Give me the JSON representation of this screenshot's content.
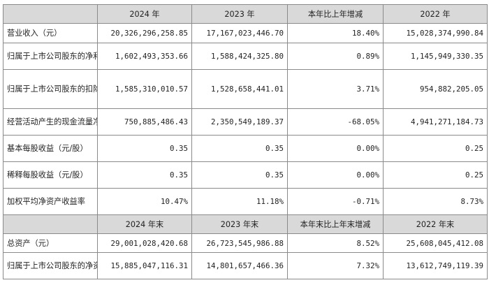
{
  "header1": [
    "",
    "2024 年",
    "2023 年",
    "本年比上年增减",
    "2022 年"
  ],
  "rows1": [
    {
      "label": "营业收入（元）",
      "v": [
        "20,326,296,258.85",
        "17,167,023,446.70",
        "18.40%",
        "15,028,374,990.84"
      ]
    },
    {
      "label": "归属于上市公司股东的净利润（元）",
      "v": [
        "1,602,493,353.66",
        "1,588,424,325.80",
        "0.89%",
        "1,145,949,330.35"
      ]
    },
    {
      "label": "归属于上市公司股东的扣除非经常性损益的净利润（元）",
      "v": [
        "1,585,310,010.57",
        "1,528,658,441.01",
        "3.71%",
        "954,882,205.05"
      ]
    },
    {
      "label": "经营活动产生的现金流量净额（元）",
      "v": [
        "750,885,486.43",
        "2,350,549,189.37",
        "-68.05%",
        "4,941,271,184.73"
      ]
    },
    {
      "label": "基本每股收益（元/股）",
      "v": [
        "0.35",
        "0.35",
        "0.00%",
        "0.25"
      ]
    },
    {
      "label": "稀释每股收益（元/股）",
      "v": [
        "0.35",
        "0.35",
        "0.00%",
        "0.25"
      ]
    },
    {
      "label": "加权平均净资产收益率",
      "v": [
        "10.47%",
        "11.18%",
        "-0.71%",
        "8.73%"
      ]
    }
  ],
  "header2": [
    "",
    "2024 年末",
    "2023 年末",
    "本年末比上年末增减",
    "2022 年末"
  ],
  "rows2": [
    {
      "label": "总资产（元）",
      "v": [
        "29,001,028,420.68",
        "26,723,545,986.88",
        "8.52%",
        "25,608,045,412.08"
      ]
    },
    {
      "label": "归属于上市公司股东的净资产（元）",
      "v": [
        "15,885,047,116.31",
        "14,801,657,466.36",
        "7.32%",
        "13,612,749,119.39"
      ]
    }
  ]
}
